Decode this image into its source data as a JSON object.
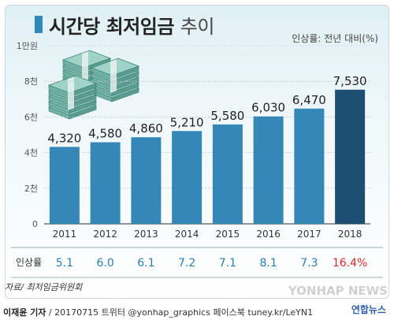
{
  "header": {
    "title_main": "시간당 최저임금",
    "title_suffix": "추이",
    "unit_note": "인상률: 전년 대비(%)"
  },
  "chart_data": {
    "type": "bar",
    "title": "시간당 최저임금 추이",
    "categories": [
      "2011",
      "2012",
      "2013",
      "2014",
      "2015",
      "2016",
      "2017",
      "2018"
    ],
    "values": [
      4320,
      4580,
      4860,
      5210,
      5580,
      6030,
      6470,
      7530
    ],
    "value_labels": [
      "4,320",
      "4,580",
      "4,860",
      "5,210",
      "5,580",
      "6,030",
      "6,470",
      "7,530"
    ],
    "ylim": [
      0,
      10000
    ],
    "yticks": [
      0,
      2000,
      4000,
      6000,
      8000,
      10000
    ],
    "ytick_labels": [
      "0",
      "2천",
      "4천",
      "6천",
      "8천",
      "1만원"
    ],
    "grid": true,
    "bar_color": "#3587b8",
    "highlight_color": "#1c4f72",
    "highlight_index": 7
  },
  "increase_row": {
    "label": "인상률",
    "values": [
      "5.1",
      "6.0",
      "6.1",
      "7.2",
      "7.1",
      "8.1",
      "7.3",
      "16.4%"
    ],
    "value_color": "#2a7fb0",
    "highlight_color": "#e0282a"
  },
  "source": "자료/ 최저임금위원회",
  "footer": {
    "reporter": "이재윤 기자",
    "rest": " / 20170715  트위터 @yonhap_graphics  페이스북 tuney.kr/LeYN1"
  },
  "watermark": "YONHAP NEWS",
  "logo_text": "연합뉴스",
  "icons": [
    "money-stack-icon"
  ]
}
